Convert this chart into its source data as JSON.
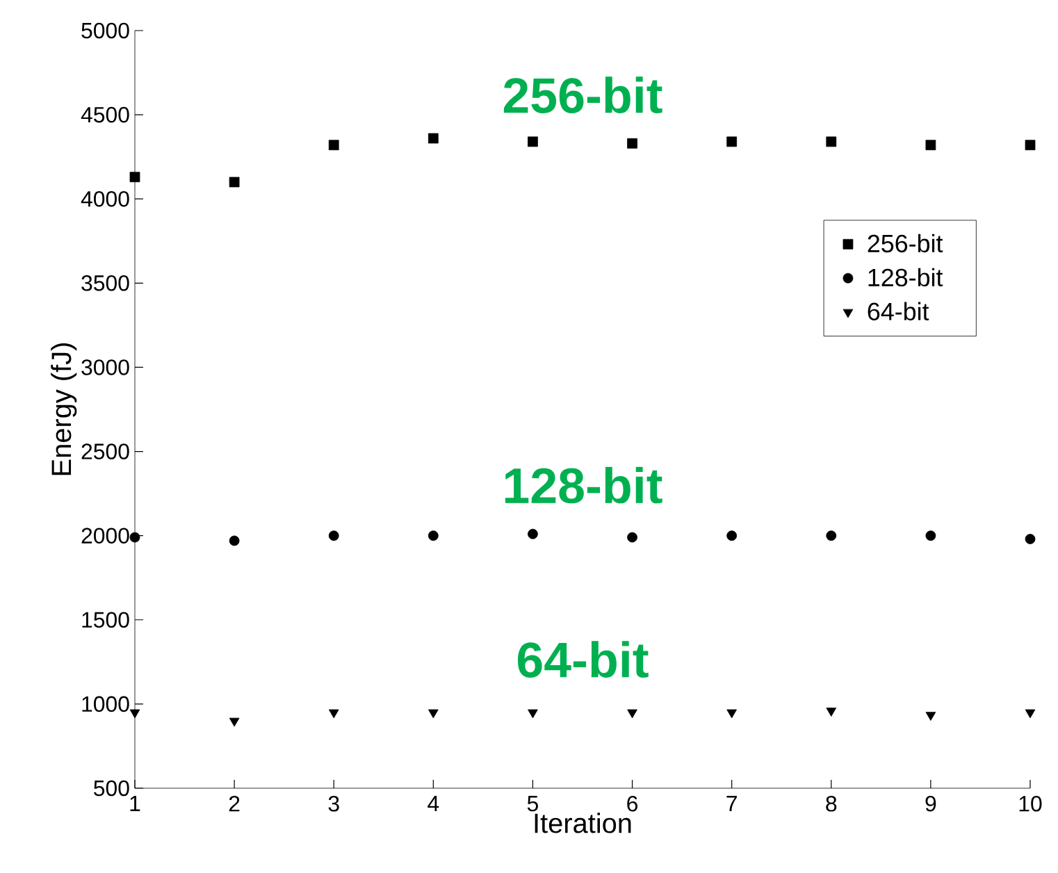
{
  "chart_data": {
    "type": "scatter",
    "xlabel": "Iteration",
    "ylabel": "Energy (fJ)",
    "x": [
      1,
      2,
      3,
      4,
      5,
      6,
      7,
      8,
      9,
      10
    ],
    "series": [
      {
        "name": "256-bit",
        "color": "#000000",
        "marker": "square",
        "values": [
          4130,
          4100,
          4320,
          4360,
          4340,
          4330,
          4340,
          4340,
          4320,
          4320
        ]
      },
      {
        "name": "128-bit",
        "color": "#000000",
        "marker": "circle",
        "values": [
          1990,
          1970,
          2000,
          2000,
          2010,
          1990,
          2000,
          2000,
          2000,
          1980
        ]
      },
      {
        "name": "64-bit",
        "color": "#000000",
        "marker": "triangle",
        "values": [
          950,
          900,
          950,
          950,
          950,
          950,
          950,
          960,
          935,
          950
        ]
      }
    ],
    "xlim": [
      1,
      10
    ],
    "xticks": [
      1,
      2,
      3,
      4,
      5,
      6,
      7,
      8,
      9,
      10
    ],
    "ylim": [
      500,
      5000
    ],
    "yticks": [
      500,
      1000,
      1500,
      2000,
      2500,
      3000,
      3500,
      4000,
      4500,
      5000
    ],
    "grid": false,
    "legend": "right",
    "annotations": [
      "256-bit",
      "128-bit",
      "64-bit"
    ]
  }
}
